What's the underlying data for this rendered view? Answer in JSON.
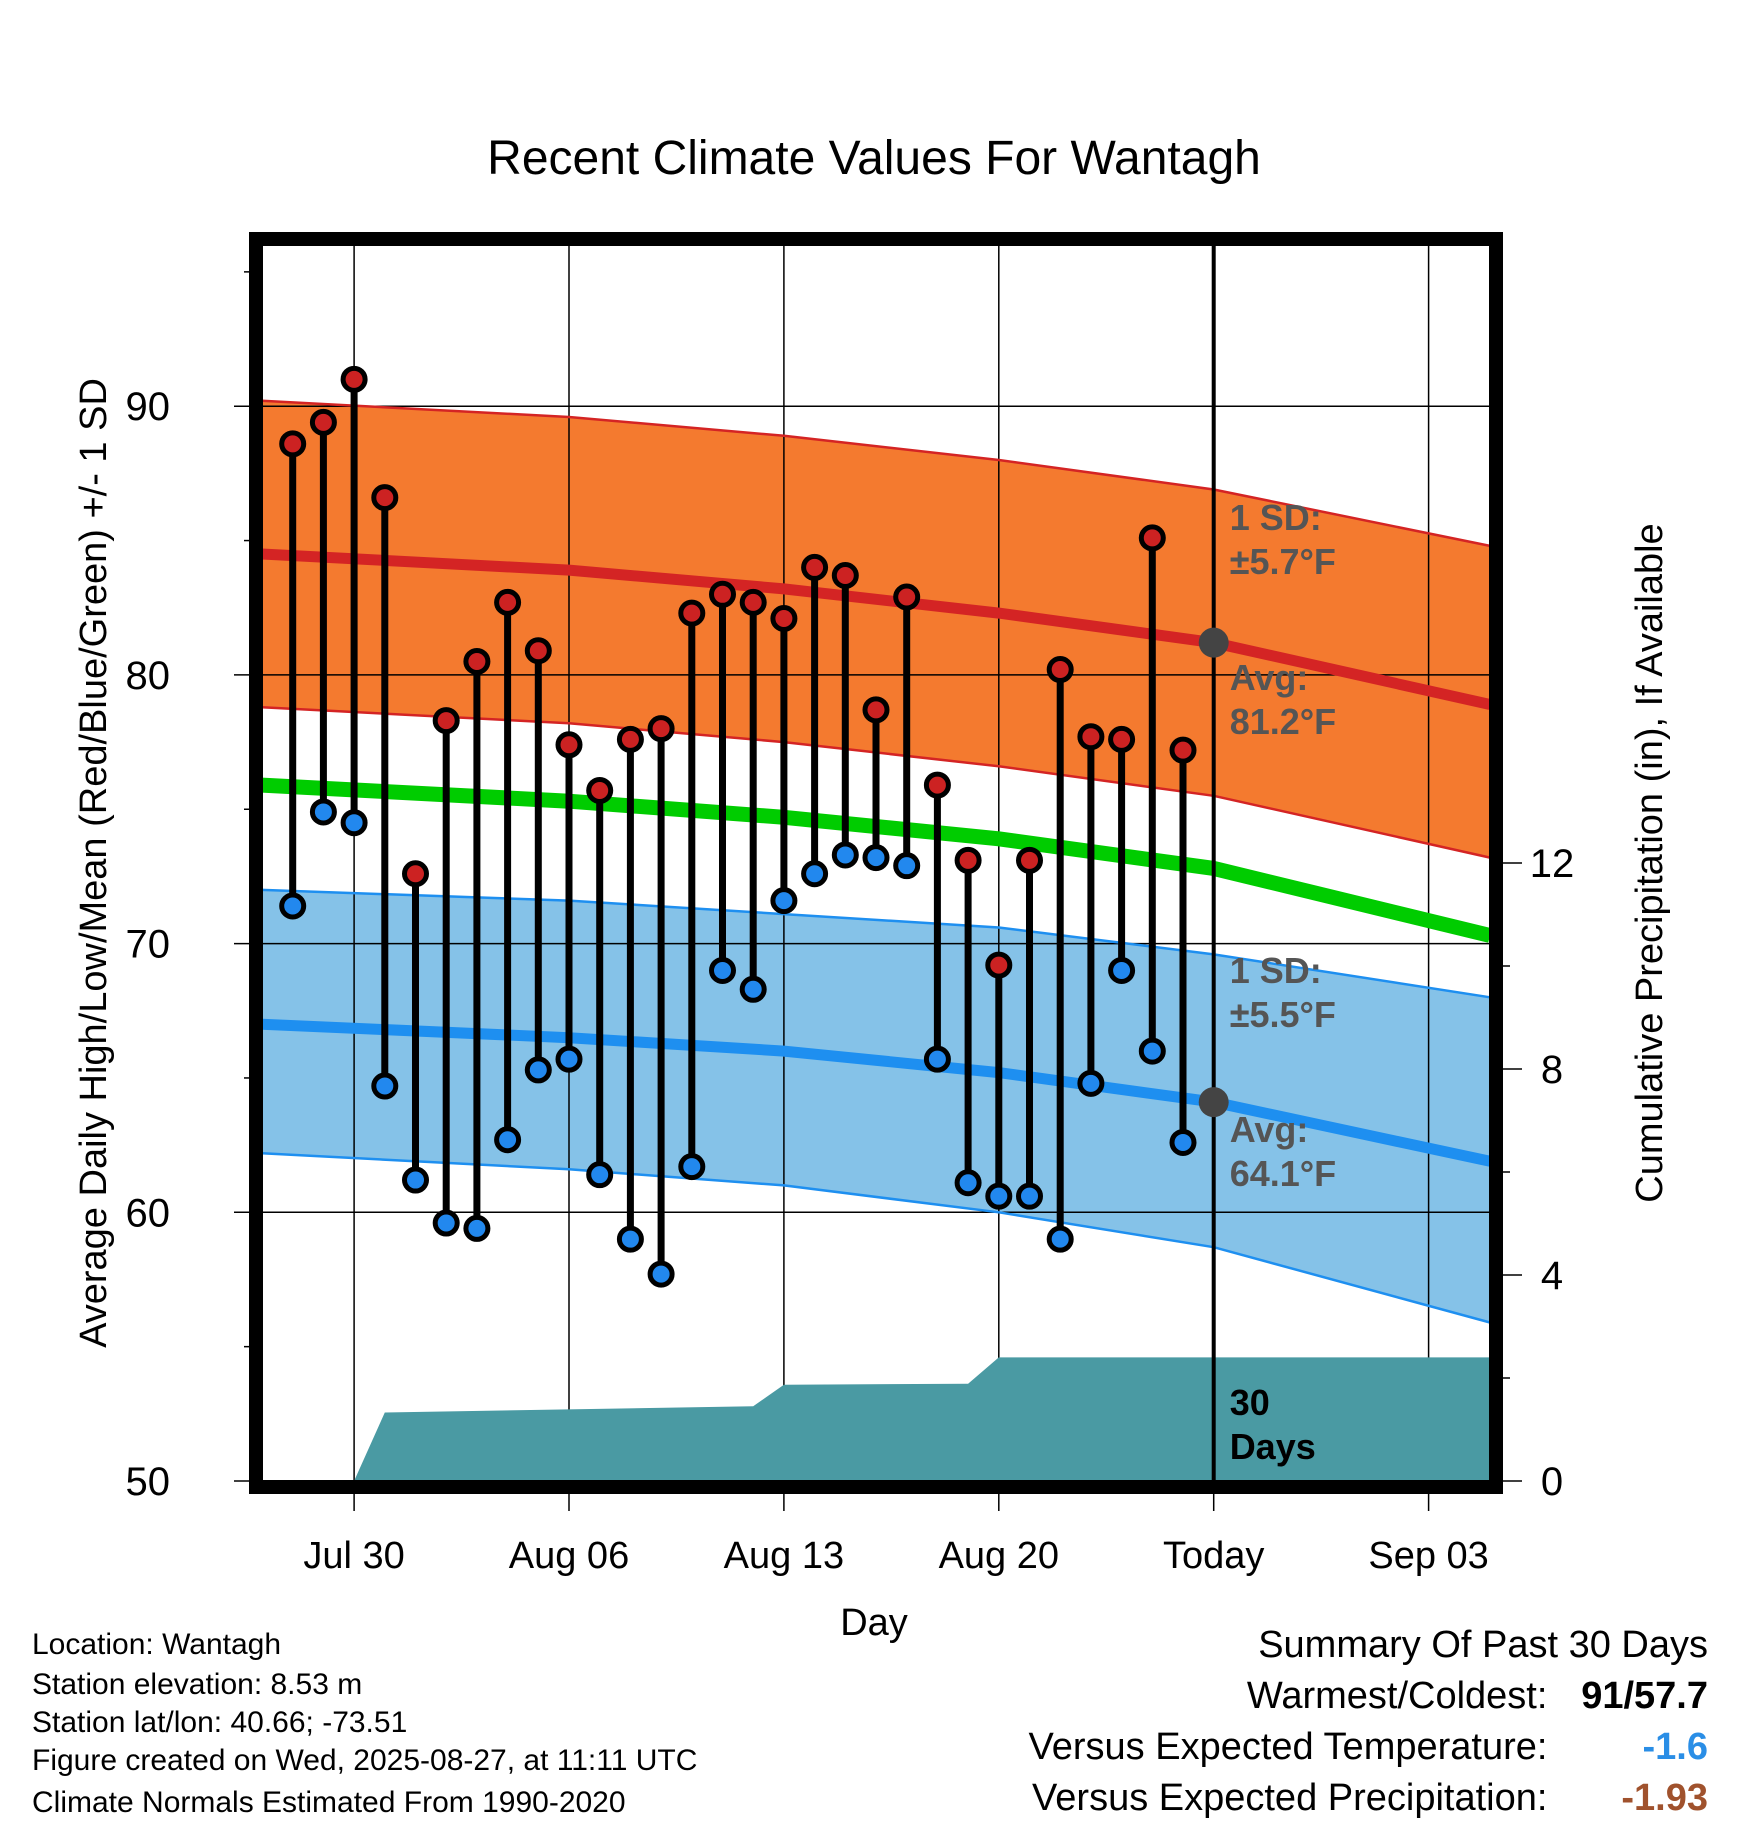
{
  "chart_data": {
    "type": "line",
    "title": "Recent Climate Values For Wantagh",
    "xlabel": "Day",
    "ylabel": "Average Daily High/Low/Mean (Red/Blue/Green) +/- 1 SD",
    "y2label": "Cumulative Precipitation (in), If Available",
    "ylim": [
      50,
      96
    ],
    "y_ticks": [
      50,
      60,
      70,
      80,
      90
    ],
    "y2lim": [
      0,
      24
    ],
    "y2_ticks": [
      0,
      4,
      8,
      12
    ],
    "x_range_days": [
      "2025-07-27",
      "2025-09-05"
    ],
    "x_tick_labels": [
      {
        "date": "2025-07-30",
        "label": "Jul 30"
      },
      {
        "date": "2025-08-06",
        "label": "Aug 06"
      },
      {
        "date": "2025-08-13",
        "label": "Aug 13"
      },
      {
        "date": "2025-08-20",
        "label": "Aug 20"
      },
      {
        "date": "2025-08-27",
        "label": "Today"
      },
      {
        "date": "2025-09-03",
        "label": "Sep 03"
      }
    ],
    "today": "2025-08-27",
    "grid": true,
    "colors": {
      "high_band": "#f47a2f",
      "high_line": "#d42424",
      "low_band": "#85c2e8",
      "low_line": "#1e8ff0",
      "mean_line": "#00cc00",
      "precip": "#4a9aa3",
      "high_dot": "#cc2222",
      "low_dot": "#2288ee",
      "avg_marker": "#444444"
    },
    "normals": {
      "dates": [
        "2025-07-27",
        "2025-08-06",
        "2025-08-13",
        "2025-08-20",
        "2025-08-27",
        "2025-09-05"
      ],
      "high_mean": [
        84.5,
        83.9,
        83.2,
        82.3,
        81.2,
        78.9
      ],
      "high_sd_upper": [
        90.2,
        89.6,
        88.9,
        88.0,
        86.9,
        84.8
      ],
      "high_sd_lower": [
        78.8,
        78.2,
        77.5,
        76.6,
        75.5,
        73.2
      ],
      "low_mean": [
        67.0,
        66.5,
        66.0,
        65.2,
        64.1,
        61.9
      ],
      "low_sd_upper": [
        72.0,
        71.6,
        71.1,
        70.6,
        69.6,
        68.0
      ],
      "low_sd_lower": [
        62.2,
        61.6,
        61.0,
        60.0,
        58.7,
        55.9
      ],
      "mean": [
        75.9,
        75.3,
        74.7,
        73.9,
        72.8,
        70.3
      ]
    },
    "annotations": {
      "high_sd": {
        "line1": "1 SD:",
        "line2": "±5.7°F"
      },
      "high_avg": {
        "line1": "Avg:",
        "line2": "81.2°F",
        "value": 81.2
      },
      "low_sd": {
        "line1": "1 SD:",
        "line2": "±5.5°F"
      },
      "low_avg": {
        "line1": "Avg:",
        "line2": "64.1°F",
        "value": 64.1
      },
      "period": {
        "line1": "30",
        "line2": "Days"
      }
    },
    "observations": {
      "dates": [
        "2025-07-28",
        "2025-07-29",
        "2025-07-30",
        "2025-07-31",
        "2025-08-01",
        "2025-08-02",
        "2025-08-03",
        "2025-08-04",
        "2025-08-05",
        "2025-08-06",
        "2025-08-07",
        "2025-08-08",
        "2025-08-09",
        "2025-08-10",
        "2025-08-11",
        "2025-08-12",
        "2025-08-13",
        "2025-08-14",
        "2025-08-15",
        "2025-08-16",
        "2025-08-17",
        "2025-08-18",
        "2025-08-19",
        "2025-08-20",
        "2025-08-21",
        "2025-08-22",
        "2025-08-23",
        "2025-08-24",
        "2025-08-25",
        "2025-08-26"
      ],
      "high": [
        88.6,
        89.4,
        91.0,
        86.6,
        72.6,
        78.3,
        80.5,
        82.7,
        80.9,
        77.4,
        75.7,
        77.6,
        78.0,
        82.3,
        83.0,
        82.7,
        82.1,
        84.0,
        83.7,
        78.7,
        82.9,
        75.9,
        73.1,
        69.2,
        73.1,
        80.2,
        77.7,
        77.6,
        85.1,
        77.2
      ],
      "low": [
        71.4,
        74.9,
        74.5,
        64.7,
        61.2,
        59.6,
        59.4,
        62.7,
        65.3,
        65.7,
        61.4,
        59.0,
        57.7,
        61.7,
        69.0,
        68.3,
        71.6,
        72.6,
        73.3,
        73.2,
        72.9,
        65.7,
        61.1,
        60.6,
        60.6,
        59.0,
        64.8,
        69.0,
        66.0,
        62.6
      ]
    },
    "precipitation": {
      "dates": [
        "2025-07-30",
        "2025-07-31",
        "2025-08-12",
        "2025-08-13",
        "2025-08-19",
        "2025-08-20",
        "2025-09-05"
      ],
      "cumulative": [
        0.0,
        1.33,
        1.45,
        1.87,
        1.89,
        2.4,
        2.4
      ]
    }
  },
  "footer": {
    "location": "Location: Wantagh",
    "elevation": "Station elevation: 8.53 m",
    "latlon": "Station lat/lon: 40.66; -73.51",
    "created": "Figure created on Wed, 2025-08-27, at 11:11 UTC",
    "normals": "Climate Normals Estimated From 1990-2020"
  },
  "summary": {
    "title": "Summary Of Past 30 Days",
    "warmest_coldest_label": "Warmest/Coldest:",
    "warmest_value": "91",
    "slash": "/",
    "coldest_value": "57.7",
    "temp_label": "Versus Expected Temperature:",
    "temp_value": "-1.6",
    "temp_color": "#2a8ee6",
    "precip_label": "Versus Expected Precipitation:",
    "precip_value": "-1.93",
    "precip_color": "#a0522d"
  }
}
